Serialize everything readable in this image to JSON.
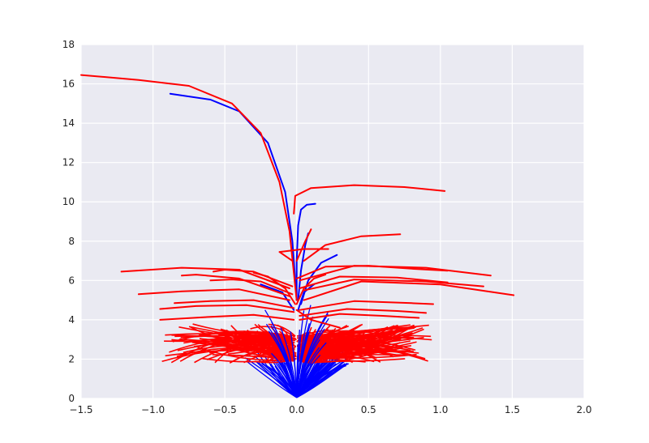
{
  "chart_data": {
    "type": "line",
    "title": "",
    "xlabel": "",
    "ylabel": "",
    "xlim": [
      -1.5,
      2.0
    ],
    "ylim": [
      0,
      18
    ],
    "grid": true,
    "legend": "none",
    "background_color": "#EAEAF2",
    "x_ticks": [
      -1.5,
      -1.0,
      -0.5,
      0.0,
      0.5,
      1.0,
      1.5,
      2.0
    ],
    "x_tick_labels": [
      "−1.5",
      "−1.0",
      "−0.5",
      "0.0",
      "0.5",
      "1.0",
      "1.5",
      "2.0"
    ],
    "y_ticks": [
      0,
      2,
      4,
      6,
      8,
      10,
      12,
      14,
      16,
      18
    ],
    "y_tick_labels": [
      "0",
      "2",
      "4",
      "6",
      "8",
      "10",
      "12",
      "14",
      "16",
      "18"
    ],
    "series": [
      {
        "color": "#0000FF",
        "points": [
          [
            0.0,
            5.0
          ],
          [
            -0.03,
            8.0
          ],
          [
            -0.08,
            10.5
          ],
          [
            -0.2,
            13.0
          ],
          [
            -0.4,
            14.6
          ],
          [
            -0.6,
            15.2
          ],
          [
            -0.88,
            15.5
          ]
        ]
      },
      {
        "color": "#0000FF",
        "points": [
          [
            0.0,
            5.0
          ],
          [
            0.0,
            7.0
          ],
          [
            0.01,
            8.8
          ],
          [
            0.03,
            9.6
          ],
          [
            0.07,
            9.85
          ],
          [
            0.13,
            9.9
          ]
        ]
      },
      {
        "color": "#0000FF",
        "points": [
          [
            0.01,
            5.0
          ],
          [
            0.03,
            6.5
          ],
          [
            0.06,
            7.8
          ],
          [
            0.08,
            8.4
          ]
        ]
      },
      {
        "color": "#0000FF",
        "points": [
          [
            0.03,
            4.8
          ],
          [
            0.08,
            6.0
          ],
          [
            0.17,
            6.9
          ],
          [
            0.28,
            7.3
          ]
        ]
      },
      {
        "color": "#0000FF",
        "points": [
          [
            -0.02,
            4.5
          ],
          [
            -0.1,
            5.4
          ],
          [
            -0.25,
            5.8
          ]
        ]
      },
      {
        "color": "#0000FF",
        "points": [
          [
            0.01,
            4.5
          ],
          [
            0.05,
            5.4
          ],
          [
            0.12,
            5.8
          ]
        ]
      },
      {
        "color": "#FF0000",
        "points": [
          [
            -0.0,
            5.0
          ],
          [
            -0.05,
            8.5
          ],
          [
            -0.12,
            11.0
          ],
          [
            -0.25,
            13.5
          ],
          [
            -0.45,
            15.0
          ],
          [
            -0.75,
            15.9
          ],
          [
            -1.1,
            16.2
          ],
          [
            -1.5,
            16.45
          ]
        ]
      },
      {
        "color": "#FF0000",
        "points": [
          [
            -0.02,
            9.4
          ],
          [
            -0.01,
            10.3
          ],
          [
            0.1,
            10.7
          ],
          [
            0.4,
            10.85
          ],
          [
            0.75,
            10.75
          ],
          [
            1.03,
            10.55
          ]
        ]
      },
      {
        "color": "#FF0000",
        "points": [
          [
            0.0,
            7.0
          ],
          [
            0.06,
            8.0
          ],
          [
            0.1,
            8.6
          ]
        ]
      },
      {
        "color": "#FF0000",
        "points": [
          [
            0.05,
            7.0
          ],
          [
            0.2,
            7.8
          ],
          [
            0.45,
            8.25
          ],
          [
            0.72,
            8.35
          ]
        ]
      },
      {
        "color": "#FF0000",
        "points": [
          [
            -0.03,
            7.0
          ],
          [
            -0.12,
            7.45
          ],
          [
            0.05,
            7.6
          ],
          [
            0.22,
            7.6
          ]
        ]
      },
      {
        "color": "#FF0000",
        "points": [
          [
            0.0,
            6.1
          ],
          [
            0.2,
            6.7
          ],
          [
            0.5,
            6.75
          ],
          [
            0.8,
            6.6
          ],
          [
            1.05,
            6.5
          ]
        ]
      },
      {
        "color": "#FF0000",
        "points": [
          [
            0.02,
            6.0
          ],
          [
            0.4,
            6.75
          ],
          [
            0.9,
            6.65
          ],
          [
            1.35,
            6.25
          ]
        ]
      },
      {
        "color": "#FF0000",
        "points": [
          [
            0.05,
            5.5
          ],
          [
            0.4,
            6.05
          ],
          [
            0.9,
            5.95
          ],
          [
            1.3,
            5.7
          ]
        ]
      },
      {
        "color": "#FF0000",
        "points": [
          [
            0.05,
            5.0
          ],
          [
            0.45,
            5.95
          ],
          [
            1.0,
            5.8
          ],
          [
            1.51,
            5.25
          ]
        ]
      },
      {
        "color": "#FF0000",
        "points": [
          [
            0.02,
            5.6
          ],
          [
            0.3,
            6.2
          ],
          [
            0.7,
            6.15
          ],
          [
            1.05,
            5.9
          ]
        ]
      },
      {
        "color": "#FF0000",
        "points": [
          [
            -0.05,
            5.6
          ],
          [
            -0.4,
            6.55
          ],
          [
            -0.8,
            6.65
          ],
          [
            -1.22,
            6.45
          ]
        ]
      },
      {
        "color": "#FF0000",
        "points": [
          [
            -0.03,
            5.7
          ],
          [
            -0.3,
            6.45
          ],
          [
            -0.5,
            6.55
          ],
          [
            -0.58,
            6.45
          ]
        ]
      },
      {
        "color": "#FF0000",
        "points": [
          [
            -0.05,
            5.0
          ],
          [
            -0.4,
            5.55
          ],
          [
            -0.8,
            5.45
          ],
          [
            -1.1,
            5.3
          ]
        ]
      },
      {
        "color": "#FF0000",
        "points": [
          [
            -0.05,
            5.2
          ],
          [
            -0.4,
            6.1
          ],
          [
            -0.7,
            6.3
          ],
          [
            -0.8,
            6.25
          ]
        ]
      },
      {
        "color": "#FF0000",
        "points": [
          [
            -0.03,
            5.3
          ],
          [
            -0.25,
            5.95
          ],
          [
            -0.45,
            6.05
          ],
          [
            -0.6,
            6.0
          ]
        ]
      },
      {
        "color": "#FF0000",
        "points": [
          [
            -0.02,
            4.6
          ],
          [
            -0.3,
            5.0
          ],
          [
            -0.6,
            4.95
          ],
          [
            -0.85,
            4.85
          ]
        ]
      },
      {
        "color": "#FF0000",
        "points": [
          [
            -0.02,
            4.4
          ],
          [
            -0.35,
            4.75
          ],
          [
            -0.7,
            4.7
          ],
          [
            -0.95,
            4.55
          ]
        ]
      },
      {
        "color": "#FF0000",
        "points": [
          [
            0.02,
            4.5
          ],
          [
            0.4,
            4.95
          ],
          [
            0.8,
            4.85
          ],
          [
            0.95,
            4.8
          ]
        ]
      },
      {
        "color": "#FF0000",
        "points": [
          [
            0.02,
            4.2
          ],
          [
            0.35,
            4.55
          ],
          [
            0.7,
            4.45
          ],
          [
            0.9,
            4.35
          ]
        ]
      },
      {
        "color": "#FF0000",
        "points": [
          [
            0.02,
            4.0
          ],
          [
            0.3,
            4.3
          ],
          [
            0.6,
            4.2
          ],
          [
            0.85,
            4.1
          ]
        ]
      },
      {
        "color": "#FF0000",
        "points": [
          [
            -0.02,
            4.0
          ],
          [
            -0.3,
            4.25
          ],
          [
            -0.6,
            4.15
          ],
          [
            -0.95,
            4.0
          ]
        ]
      },
      {
        "color": "#FF0000",
        "points": [
          [
            0.0,
            4.8
          ],
          [
            0.05,
            5.6
          ],
          [
            0.12,
            6.1
          ],
          [
            0.2,
            6.3
          ]
        ]
      },
      {
        "color": "#FF0000",
        "points": [
          [
            -0.01,
            4.8
          ],
          [
            -0.08,
            5.6
          ],
          [
            -0.2,
            6.2
          ],
          [
            -0.3,
            6.4
          ]
        ]
      },
      {
        "color": "#FF0000",
        "points": [
          [
            0.0,
            4.5
          ],
          [
            0.1,
            4.0
          ],
          [
            0.2,
            3.8
          ],
          [
            0.3,
            3.6
          ]
        ]
      }
    ]
  }
}
